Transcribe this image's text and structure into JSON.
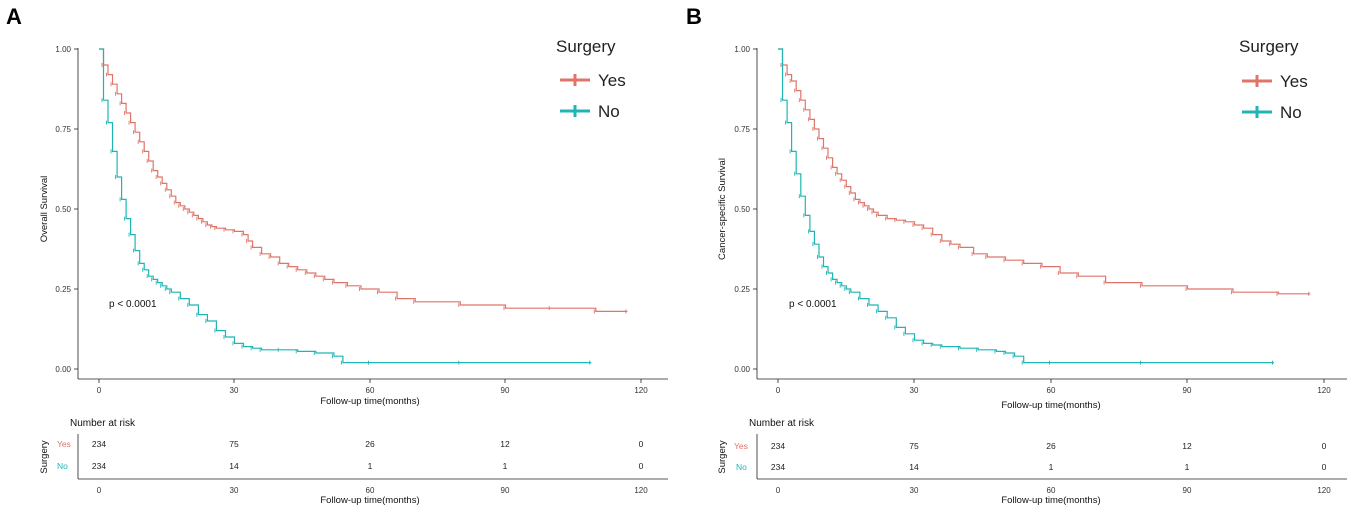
{
  "colors": {
    "yes": "#e0746a",
    "no": "#1fb5b5"
  },
  "chart_data": [
    {
      "type": "line",
      "panel_label": "A",
      "ylabel": "Overall Survival",
      "xlabel": "Follow-up time(months)",
      "xlim": [
        0,
        120
      ],
      "ylim": [
        0,
        1
      ],
      "xticks": [
        0,
        30,
        60,
        90,
        120
      ],
      "yticks": [
        "0.00",
        "0.25",
        "0.50",
        "0.75",
        "1.00"
      ],
      "legend_title": "Surgery",
      "pvalue": "p < 0.0001",
      "series": [
        {
          "name": "Yes",
          "color_key": "yes",
          "x": [
            0,
            1,
            2,
            3,
            4,
            5,
            6,
            7,
            8,
            9,
            10,
            11,
            12,
            13,
            14,
            15,
            16,
            17,
            18,
            19,
            20,
            21,
            22,
            23,
            24,
            25,
            26,
            28,
            30,
            32,
            33,
            34,
            36,
            38,
            40,
            42,
            44,
            46,
            48,
            50,
            52,
            55,
            58,
            62,
            66,
            70,
            80,
            90,
            100,
            110,
            117
          ],
          "y": [
            1.0,
            0.95,
            0.92,
            0.89,
            0.86,
            0.83,
            0.8,
            0.77,
            0.74,
            0.71,
            0.68,
            0.65,
            0.62,
            0.6,
            0.58,
            0.56,
            0.54,
            0.52,
            0.51,
            0.5,
            0.49,
            0.48,
            0.47,
            0.46,
            0.45,
            0.445,
            0.44,
            0.435,
            0.43,
            0.42,
            0.4,
            0.38,
            0.36,
            0.35,
            0.33,
            0.32,
            0.31,
            0.3,
            0.29,
            0.28,
            0.27,
            0.26,
            0.25,
            0.24,
            0.22,
            0.21,
            0.2,
            0.19,
            0.19,
            0.18,
            0.18
          ]
        },
        {
          "name": "No",
          "color_key": "no",
          "x": [
            0,
            1,
            2,
            3,
            4,
            5,
            6,
            7,
            8,
            9,
            10,
            11,
            12,
            13,
            14,
            15,
            16,
            18,
            20,
            22,
            24,
            26,
            28,
            30,
            32,
            34,
            36,
            40,
            44,
            48,
            52,
            54,
            60,
            80,
            109
          ],
          "y": [
            1.0,
            0.84,
            0.77,
            0.68,
            0.6,
            0.53,
            0.47,
            0.42,
            0.37,
            0.33,
            0.31,
            0.29,
            0.28,
            0.27,
            0.26,
            0.25,
            0.24,
            0.22,
            0.2,
            0.17,
            0.15,
            0.12,
            0.1,
            0.08,
            0.07,
            0.065,
            0.06,
            0.06,
            0.055,
            0.05,
            0.04,
            0.02,
            0.02,
            0.02,
            0.02
          ]
        }
      ],
      "risk_table": {
        "title": "Number at risk",
        "ylabel": "Surgery",
        "xlabel": "Follow-up time(months)",
        "rows": [
          {
            "label": "Yes",
            "color_key": "yes",
            "values": [
              "234",
              "75",
              "26",
              "12",
              "0"
            ]
          },
          {
            "label": "No",
            "color_key": "no",
            "values": [
              "234",
              "14",
              "1",
              "1",
              "0"
            ]
          }
        ]
      }
    },
    {
      "type": "line",
      "panel_label": "B",
      "ylabel": "Cancer-specific Survival",
      "xlabel": "Follow-up time(months)",
      "xlim": [
        0,
        120
      ],
      "ylim": [
        0,
        1
      ],
      "xticks": [
        0,
        30,
        60,
        90,
        120
      ],
      "yticks": [
        "0.00",
        "0.25",
        "0.50",
        "0.75",
        "1.00"
      ],
      "legend_title": "Surgery",
      "pvalue": "p < 0.0001",
      "series": [
        {
          "name": "Yes",
          "color_key": "yes",
          "x": [
            0,
            1,
            2,
            3,
            4,
            5,
            6,
            7,
            8,
            9,
            10,
            11,
            12,
            13,
            14,
            15,
            16,
            17,
            18,
            19,
            20,
            21,
            22,
            24,
            26,
            28,
            30,
            32,
            34,
            36,
            38,
            40,
            43,
            46,
            50,
            54,
            58,
            62,
            66,
            72,
            80,
            90,
            100,
            110,
            117
          ],
          "y": [
            1.0,
            0.95,
            0.92,
            0.9,
            0.87,
            0.84,
            0.81,
            0.78,
            0.75,
            0.72,
            0.69,
            0.66,
            0.63,
            0.61,
            0.59,
            0.57,
            0.55,
            0.53,
            0.52,
            0.51,
            0.5,
            0.49,
            0.48,
            0.47,
            0.465,
            0.46,
            0.45,
            0.44,
            0.42,
            0.4,
            0.39,
            0.38,
            0.36,
            0.35,
            0.34,
            0.33,
            0.32,
            0.3,
            0.29,
            0.27,
            0.26,
            0.25,
            0.24,
            0.235,
            0.235
          ]
        },
        {
          "name": "No",
          "color_key": "no",
          "x": [
            0,
            1,
            2,
            3,
            4,
            5,
            6,
            7,
            8,
            9,
            10,
            11,
            12,
            13,
            14,
            15,
            16,
            18,
            20,
            22,
            24,
            26,
            28,
            30,
            32,
            34,
            36,
            40,
            44,
            48,
            50,
            52,
            54,
            60,
            80,
            109
          ],
          "y": [
            1.0,
            0.84,
            0.77,
            0.68,
            0.61,
            0.54,
            0.48,
            0.43,
            0.39,
            0.35,
            0.32,
            0.3,
            0.28,
            0.27,
            0.26,
            0.25,
            0.24,
            0.22,
            0.2,
            0.18,
            0.16,
            0.13,
            0.11,
            0.09,
            0.08,
            0.075,
            0.07,
            0.065,
            0.06,
            0.055,
            0.05,
            0.04,
            0.02,
            0.02,
            0.02,
            0.02
          ]
        }
      ],
      "risk_table": {
        "title": "Number at risk",
        "ylabel": "Surgery",
        "xlabel": "Follow-up time(months)",
        "rows": [
          {
            "label": "Yes",
            "color_key": "yes",
            "values": [
              "234",
              "75",
              "26",
              "12",
              "0"
            ]
          },
          {
            "label": "No",
            "color_key": "no",
            "values": [
              "234",
              "14",
              "1",
              "1",
              "0"
            ]
          }
        ]
      }
    }
  ]
}
